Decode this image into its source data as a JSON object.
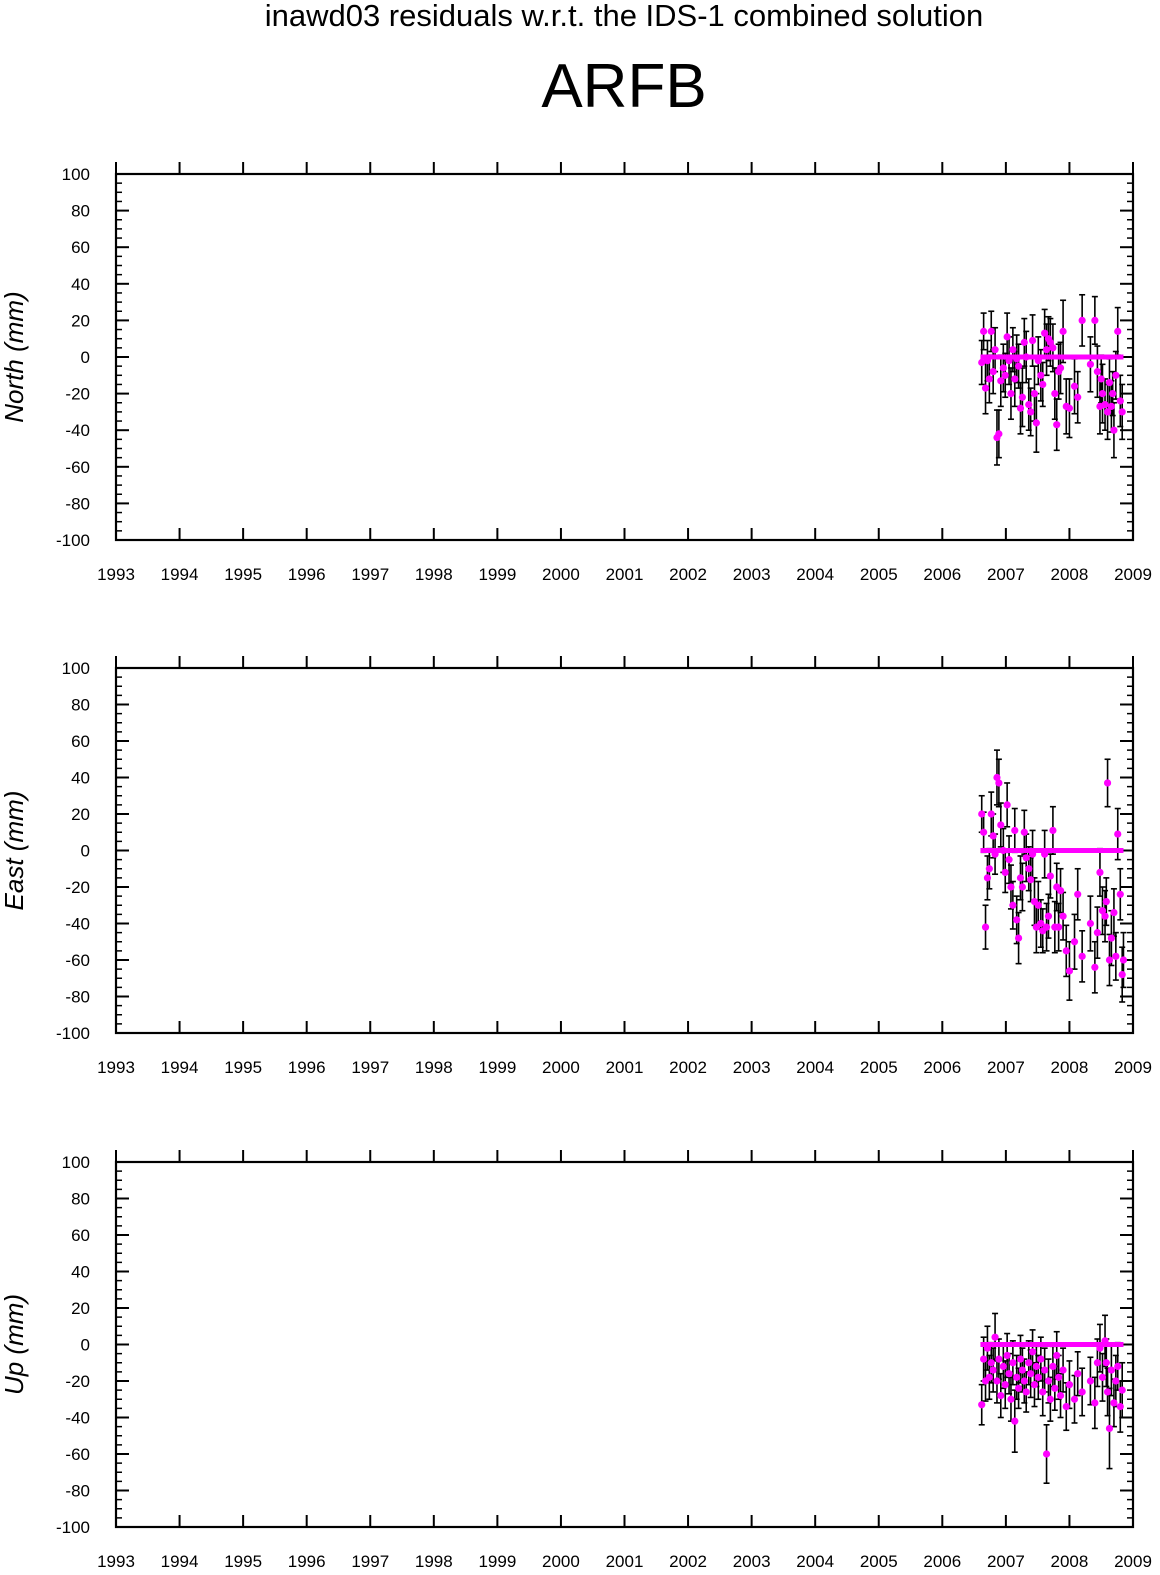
{
  "header": {
    "subtitle": "inawd03 residuals w.r.t. the IDS-1 combined solution",
    "title": "ARFB"
  },
  "colors": {
    "points": "#ff00ff",
    "errorbars": "#000000",
    "axes": "#000000"
  },
  "chart_data": [
    {
      "type": "scatter",
      "ylabel": "North (mm)",
      "xlim": [
        1993,
        2009
      ],
      "ylim": [
        -100,
        100
      ],
      "x_ticks": [
        "1993",
        "1994",
        "1995",
        "1996",
        "1997",
        "1998",
        "1999",
        "2000",
        "2001",
        "2002",
        "2003",
        "2004",
        "2005",
        "2006",
        "2007",
        "2008",
        "2009"
      ],
      "y_ticks": [
        "100",
        "80",
        "60",
        "40",
        "20",
        "0",
        "-20",
        "-40",
        "-60",
        "-80",
        "-100"
      ],
      "zero_line": {
        "x_start": 2006.6,
        "x_end": 2008.85,
        "y": 0
      },
      "points": [
        {
          "x": 2006.62,
          "y": -3,
          "err": 12
        },
        {
          "x": 2006.65,
          "y": 14,
          "err": 10
        },
        {
          "x": 2006.68,
          "y": -17,
          "err": 14
        },
        {
          "x": 2006.71,
          "y": -2,
          "err": 11
        },
        {
          "x": 2006.74,
          "y": -12,
          "err": 13
        },
        {
          "x": 2006.77,
          "y": 14,
          "err": 11
        },
        {
          "x": 2006.8,
          "y": -8,
          "err": 12
        },
        {
          "x": 2006.83,
          "y": 4,
          "err": 12
        },
        {
          "x": 2006.86,
          "y": -44,
          "err": 15
        },
        {
          "x": 2006.89,
          "y": -42,
          "err": 13
        },
        {
          "x": 2006.92,
          "y": -13,
          "err": 14
        },
        {
          "x": 2006.96,
          "y": -6,
          "err": 13
        },
        {
          "x": 2006.99,
          "y": -10,
          "err": 12
        },
        {
          "x": 2007.02,
          "y": 11,
          "err": 13
        },
        {
          "x": 2007.05,
          "y": -2,
          "err": 13
        },
        {
          "x": 2007.08,
          "y": -20,
          "err": 14
        },
        {
          "x": 2007.11,
          "y": 4,
          "err": 12
        },
        {
          "x": 2007.14,
          "y": -12,
          "err": 15
        },
        {
          "x": 2007.17,
          "y": -1,
          "err": 13
        },
        {
          "x": 2007.2,
          "y": -5,
          "err": 12
        },
        {
          "x": 2007.23,
          "y": -28,
          "err": 14
        },
        {
          "x": 2007.26,
          "y": -22,
          "err": 16
        },
        {
          "x": 2007.29,
          "y": 8,
          "err": 13
        },
        {
          "x": 2007.32,
          "y": 0,
          "err": 14
        },
        {
          "x": 2007.36,
          "y": -26,
          "err": 14
        },
        {
          "x": 2007.39,
          "y": -30,
          "err": 13
        },
        {
          "x": 2007.42,
          "y": 9,
          "err": 14
        },
        {
          "x": 2007.45,
          "y": -20,
          "err": 15
        },
        {
          "x": 2007.48,
          "y": -36,
          "err": 16
        },
        {
          "x": 2007.51,
          "y": -2,
          "err": 13
        },
        {
          "x": 2007.55,
          "y": -10,
          "err": 14
        },
        {
          "x": 2007.58,
          "y": -15,
          "err": 12
        },
        {
          "x": 2007.61,
          "y": 13,
          "err": 13
        },
        {
          "x": 2007.64,
          "y": 4,
          "err": 14
        },
        {
          "x": 2007.67,
          "y": 10,
          "err": 12
        },
        {
          "x": 2007.7,
          "y": 8,
          "err": 13
        },
        {
          "x": 2007.74,
          "y": 5,
          "err": 13
        },
        {
          "x": 2007.77,
          "y": -20,
          "err": 14
        },
        {
          "x": 2007.8,
          "y": -37,
          "err": 14
        },
        {
          "x": 2007.83,
          "y": -8,
          "err": 15
        },
        {
          "x": 2007.86,
          "y": -6,
          "err": 14
        },
        {
          "x": 2007.9,
          "y": 14,
          "err": 17
        },
        {
          "x": 2007.95,
          "y": -27,
          "err": 15
        },
        {
          "x": 2008.0,
          "y": -28,
          "err": 16
        },
        {
          "x": 2008.08,
          "y": -16,
          "err": 15
        },
        {
          "x": 2008.13,
          "y": -22,
          "err": 14
        },
        {
          "x": 2008.2,
          "y": 20,
          "err": 14
        },
        {
          "x": 2008.33,
          "y": -4,
          "err": 15
        },
        {
          "x": 2008.4,
          "y": 20,
          "err": 13
        },
        {
          "x": 2008.44,
          "y": -8,
          "err": 14
        },
        {
          "x": 2008.48,
          "y": -27,
          "err": 15
        },
        {
          "x": 2008.52,
          "y": -20,
          "err": 16
        },
        {
          "x": 2008.56,
          "y": -26,
          "err": 14
        },
        {
          "x": 2008.6,
          "y": -30,
          "err": 15
        },
        {
          "x": 2008.63,
          "y": -14,
          "err": 13
        },
        {
          "x": 2008.66,
          "y": -27,
          "err": 14
        },
        {
          "x": 2008.7,
          "y": -40,
          "err": 15
        },
        {
          "x": 2008.73,
          "y": -10,
          "err": 13
        },
        {
          "x": 2008.76,
          "y": 14,
          "err": 13
        },
        {
          "x": 2008.8,
          "y": -24,
          "err": 14
        },
        {
          "x": 2008.83,
          "y": -30,
          "err": 15
        },
        {
          "x": 2008.68,
          "y": -20,
          "err": 12
        },
        {
          "x": 2008.5,
          "y": -12,
          "err": 13
        }
      ]
    },
    {
      "type": "scatter",
      "ylabel": "East (mm)",
      "xlim": [
        1993,
        2009
      ],
      "ylim": [
        -100,
        100
      ],
      "x_ticks": [
        "1993",
        "1994",
        "1995",
        "1996",
        "1997",
        "1998",
        "1999",
        "2000",
        "2001",
        "2002",
        "2003",
        "2004",
        "2005",
        "2006",
        "2007",
        "2008",
        "2009"
      ],
      "y_ticks": [
        "100",
        "80",
        "60",
        "40",
        "20",
        "0",
        "-20",
        "-40",
        "-60",
        "-80",
        "-100"
      ],
      "zero_line": {
        "x_start": 2006.6,
        "x_end": 2008.85,
        "y": 0
      },
      "points": [
        {
          "x": 2006.62,
          "y": 20,
          "err": 10
        },
        {
          "x": 2006.65,
          "y": 10,
          "err": 11
        },
        {
          "x": 2006.68,
          "y": -42,
          "err": 12
        },
        {
          "x": 2006.71,
          "y": -15,
          "err": 12
        },
        {
          "x": 2006.74,
          "y": -10,
          "err": 11
        },
        {
          "x": 2006.77,
          "y": 20,
          "err": 12
        },
        {
          "x": 2006.8,
          "y": 8,
          "err": 12
        },
        {
          "x": 2006.83,
          "y": -2,
          "err": 11
        },
        {
          "x": 2006.86,
          "y": 40,
          "err": 15
        },
        {
          "x": 2006.89,
          "y": 37,
          "err": 13
        },
        {
          "x": 2006.92,
          "y": 14,
          "err": 12
        },
        {
          "x": 2006.96,
          "y": 0,
          "err": 12
        },
        {
          "x": 2006.99,
          "y": -12,
          "err": 11
        },
        {
          "x": 2007.02,
          "y": 25,
          "err": 12
        },
        {
          "x": 2007.05,
          "y": -5,
          "err": 13
        },
        {
          "x": 2007.08,
          "y": -20,
          "err": 12
        },
        {
          "x": 2007.11,
          "y": -30,
          "err": 13
        },
        {
          "x": 2007.14,
          "y": 11,
          "err": 12
        },
        {
          "x": 2007.17,
          "y": -38,
          "err": 13
        },
        {
          "x": 2007.2,
          "y": -48,
          "err": 14
        },
        {
          "x": 2007.23,
          "y": -15,
          "err": 12
        },
        {
          "x": 2007.26,
          "y": -20,
          "err": 13
        },
        {
          "x": 2007.29,
          "y": 10,
          "err": 12
        },
        {
          "x": 2007.32,
          "y": -4,
          "err": 13
        },
        {
          "x": 2007.36,
          "y": -10,
          "err": 12
        },
        {
          "x": 2007.39,
          "y": -16,
          "err": 12
        },
        {
          "x": 2007.42,
          "y": -2,
          "err": 13
        },
        {
          "x": 2007.45,
          "y": -28,
          "err": 13
        },
        {
          "x": 2007.48,
          "y": -42,
          "err": 14
        },
        {
          "x": 2007.51,
          "y": -30,
          "err": 13
        },
        {
          "x": 2007.55,
          "y": -40,
          "err": 13
        },
        {
          "x": 2007.58,
          "y": -44,
          "err": 12
        },
        {
          "x": 2007.61,
          "y": -2,
          "err": 13
        },
        {
          "x": 2007.64,
          "y": -42,
          "err": 13
        },
        {
          "x": 2007.67,
          "y": -36,
          "err": 12
        },
        {
          "x": 2007.7,
          "y": -14,
          "err": 12
        },
        {
          "x": 2007.74,
          "y": 11,
          "err": 13
        },
        {
          "x": 2007.77,
          "y": -42,
          "err": 14
        },
        {
          "x": 2007.8,
          "y": -20,
          "err": 13
        },
        {
          "x": 2007.83,
          "y": -42,
          "err": 13
        },
        {
          "x": 2007.86,
          "y": -22,
          "err": 12
        },
        {
          "x": 2007.9,
          "y": -36,
          "err": 13
        },
        {
          "x": 2007.95,
          "y": -55,
          "err": 14
        },
        {
          "x": 2008.0,
          "y": -66,
          "err": 16
        },
        {
          "x": 2008.08,
          "y": -50,
          "err": 15
        },
        {
          "x": 2008.13,
          "y": -24,
          "err": 14
        },
        {
          "x": 2008.2,
          "y": -58,
          "err": 14
        },
        {
          "x": 2008.33,
          "y": -40,
          "err": 15
        },
        {
          "x": 2008.4,
          "y": -64,
          "err": 14
        },
        {
          "x": 2008.44,
          "y": -45,
          "err": 14
        },
        {
          "x": 2008.48,
          "y": -12,
          "err": 13
        },
        {
          "x": 2008.52,
          "y": -33,
          "err": 13
        },
        {
          "x": 2008.56,
          "y": -36,
          "err": 14
        },
        {
          "x": 2008.6,
          "y": 37,
          "err": 13
        },
        {
          "x": 2008.63,
          "y": -60,
          "err": 14
        },
        {
          "x": 2008.66,
          "y": -48,
          "err": 15
        },
        {
          "x": 2008.7,
          "y": -34,
          "err": 13
        },
        {
          "x": 2008.73,
          "y": -58,
          "err": 13
        },
        {
          "x": 2008.76,
          "y": 9,
          "err": 14
        },
        {
          "x": 2008.8,
          "y": -24,
          "err": 14
        },
        {
          "x": 2008.83,
          "y": -68,
          "err": 15
        },
        {
          "x": 2008.85,
          "y": -60,
          "err": 15
        },
        {
          "x": 2008.58,
          "y": -28,
          "err": 13
        }
      ]
    },
    {
      "type": "scatter",
      "ylabel": "Up (mm)",
      "xlim": [
        1993,
        2009
      ],
      "ylim": [
        -100,
        100
      ],
      "x_ticks": [
        "1993",
        "1994",
        "1995",
        "1996",
        "1997",
        "1998",
        "1999",
        "2000",
        "2001",
        "2002",
        "2003",
        "2004",
        "2005",
        "2006",
        "2007",
        "2008",
        "2009"
      ],
      "y_ticks": [
        "100",
        "80",
        "60",
        "40",
        "20",
        "0",
        "-20",
        "-40",
        "-60",
        "-80",
        "-100"
      ],
      "zero_line": {
        "x_start": 2006.6,
        "x_end": 2008.85,
        "y": 0
      },
      "points": [
        {
          "x": 2006.62,
          "y": -33,
          "err": 11
        },
        {
          "x": 2006.65,
          "y": -8,
          "err": 12
        },
        {
          "x": 2006.68,
          "y": -20,
          "err": 11
        },
        {
          "x": 2006.71,
          "y": -2,
          "err": 12
        },
        {
          "x": 2006.74,
          "y": -18,
          "err": 12
        },
        {
          "x": 2006.77,
          "y": -10,
          "err": 11
        },
        {
          "x": 2006.8,
          "y": -14,
          "err": 12
        },
        {
          "x": 2006.83,
          "y": 4,
          "err": 13
        },
        {
          "x": 2006.86,
          "y": -20,
          "err": 12
        },
        {
          "x": 2006.89,
          "y": -8,
          "err": 11
        },
        {
          "x": 2006.92,
          "y": -28,
          "err": 12
        },
        {
          "x": 2006.96,
          "y": -12,
          "err": 12
        },
        {
          "x": 2006.99,
          "y": -22,
          "err": 13
        },
        {
          "x": 2007.02,
          "y": -6,
          "err": 12
        },
        {
          "x": 2007.05,
          "y": -16,
          "err": 11
        },
        {
          "x": 2007.08,
          "y": -30,
          "err": 12
        },
        {
          "x": 2007.11,
          "y": -10,
          "err": 12
        },
        {
          "x": 2007.14,
          "y": -42,
          "err": 17
        },
        {
          "x": 2007.17,
          "y": -18,
          "err": 12
        },
        {
          "x": 2007.2,
          "y": -24,
          "err": 11
        },
        {
          "x": 2007.23,
          "y": -8,
          "err": 13
        },
        {
          "x": 2007.26,
          "y": -14,
          "err": 12
        },
        {
          "x": 2007.29,
          "y": -20,
          "err": 12
        },
        {
          "x": 2007.32,
          "y": -26,
          "err": 11
        },
        {
          "x": 2007.36,
          "y": -10,
          "err": 12
        },
        {
          "x": 2007.39,
          "y": -16,
          "err": 13
        },
        {
          "x": 2007.42,
          "y": -4,
          "err": 12
        },
        {
          "x": 2007.45,
          "y": -22,
          "err": 12
        },
        {
          "x": 2007.48,
          "y": -12,
          "err": 11
        },
        {
          "x": 2007.51,
          "y": -18,
          "err": 12
        },
        {
          "x": 2007.55,
          "y": -8,
          "err": 12
        },
        {
          "x": 2007.58,
          "y": -26,
          "err": 13
        },
        {
          "x": 2007.61,
          "y": -14,
          "err": 12
        },
        {
          "x": 2007.64,
          "y": -60,
          "err": 16
        },
        {
          "x": 2007.67,
          "y": -20,
          "err": 12
        },
        {
          "x": 2007.7,
          "y": -30,
          "err": 12
        },
        {
          "x": 2007.74,
          "y": -12,
          "err": 11
        },
        {
          "x": 2007.77,
          "y": -24,
          "err": 12
        },
        {
          "x": 2007.8,
          "y": -6,
          "err": 13
        },
        {
          "x": 2007.83,
          "y": -18,
          "err": 12
        },
        {
          "x": 2007.86,
          "y": -28,
          "err": 12
        },
        {
          "x": 2007.9,
          "y": -14,
          "err": 12
        },
        {
          "x": 2007.95,
          "y": -34,
          "err": 13
        },
        {
          "x": 2008.0,
          "y": -22,
          "err": 13
        },
        {
          "x": 2008.08,
          "y": -30,
          "err": 13
        },
        {
          "x": 2008.13,
          "y": -16,
          "err": 12
        },
        {
          "x": 2008.2,
          "y": -26,
          "err": 13
        },
        {
          "x": 2008.33,
          "y": -20,
          "err": 13
        },
        {
          "x": 2008.4,
          "y": -32,
          "err": 14
        },
        {
          "x": 2008.44,
          "y": -10,
          "err": 13
        },
        {
          "x": 2008.48,
          "y": -2,
          "err": 13
        },
        {
          "x": 2008.52,
          "y": -18,
          "err": 13
        },
        {
          "x": 2008.56,
          "y": 2,
          "err": 14
        },
        {
          "x": 2008.6,
          "y": -26,
          "err": 13
        },
        {
          "x": 2008.63,
          "y": -46,
          "err": 22
        },
        {
          "x": 2008.66,
          "y": -14,
          "err": 14
        },
        {
          "x": 2008.7,
          "y": -32,
          "err": 13
        },
        {
          "x": 2008.73,
          "y": -20,
          "err": 14
        },
        {
          "x": 2008.76,
          "y": -12,
          "err": 13
        },
        {
          "x": 2008.8,
          "y": -34,
          "err": 14
        },
        {
          "x": 2008.83,
          "y": -25,
          "err": 15
        },
        {
          "x": 2008.58,
          "y": -10,
          "err": 13
        }
      ]
    }
  ]
}
